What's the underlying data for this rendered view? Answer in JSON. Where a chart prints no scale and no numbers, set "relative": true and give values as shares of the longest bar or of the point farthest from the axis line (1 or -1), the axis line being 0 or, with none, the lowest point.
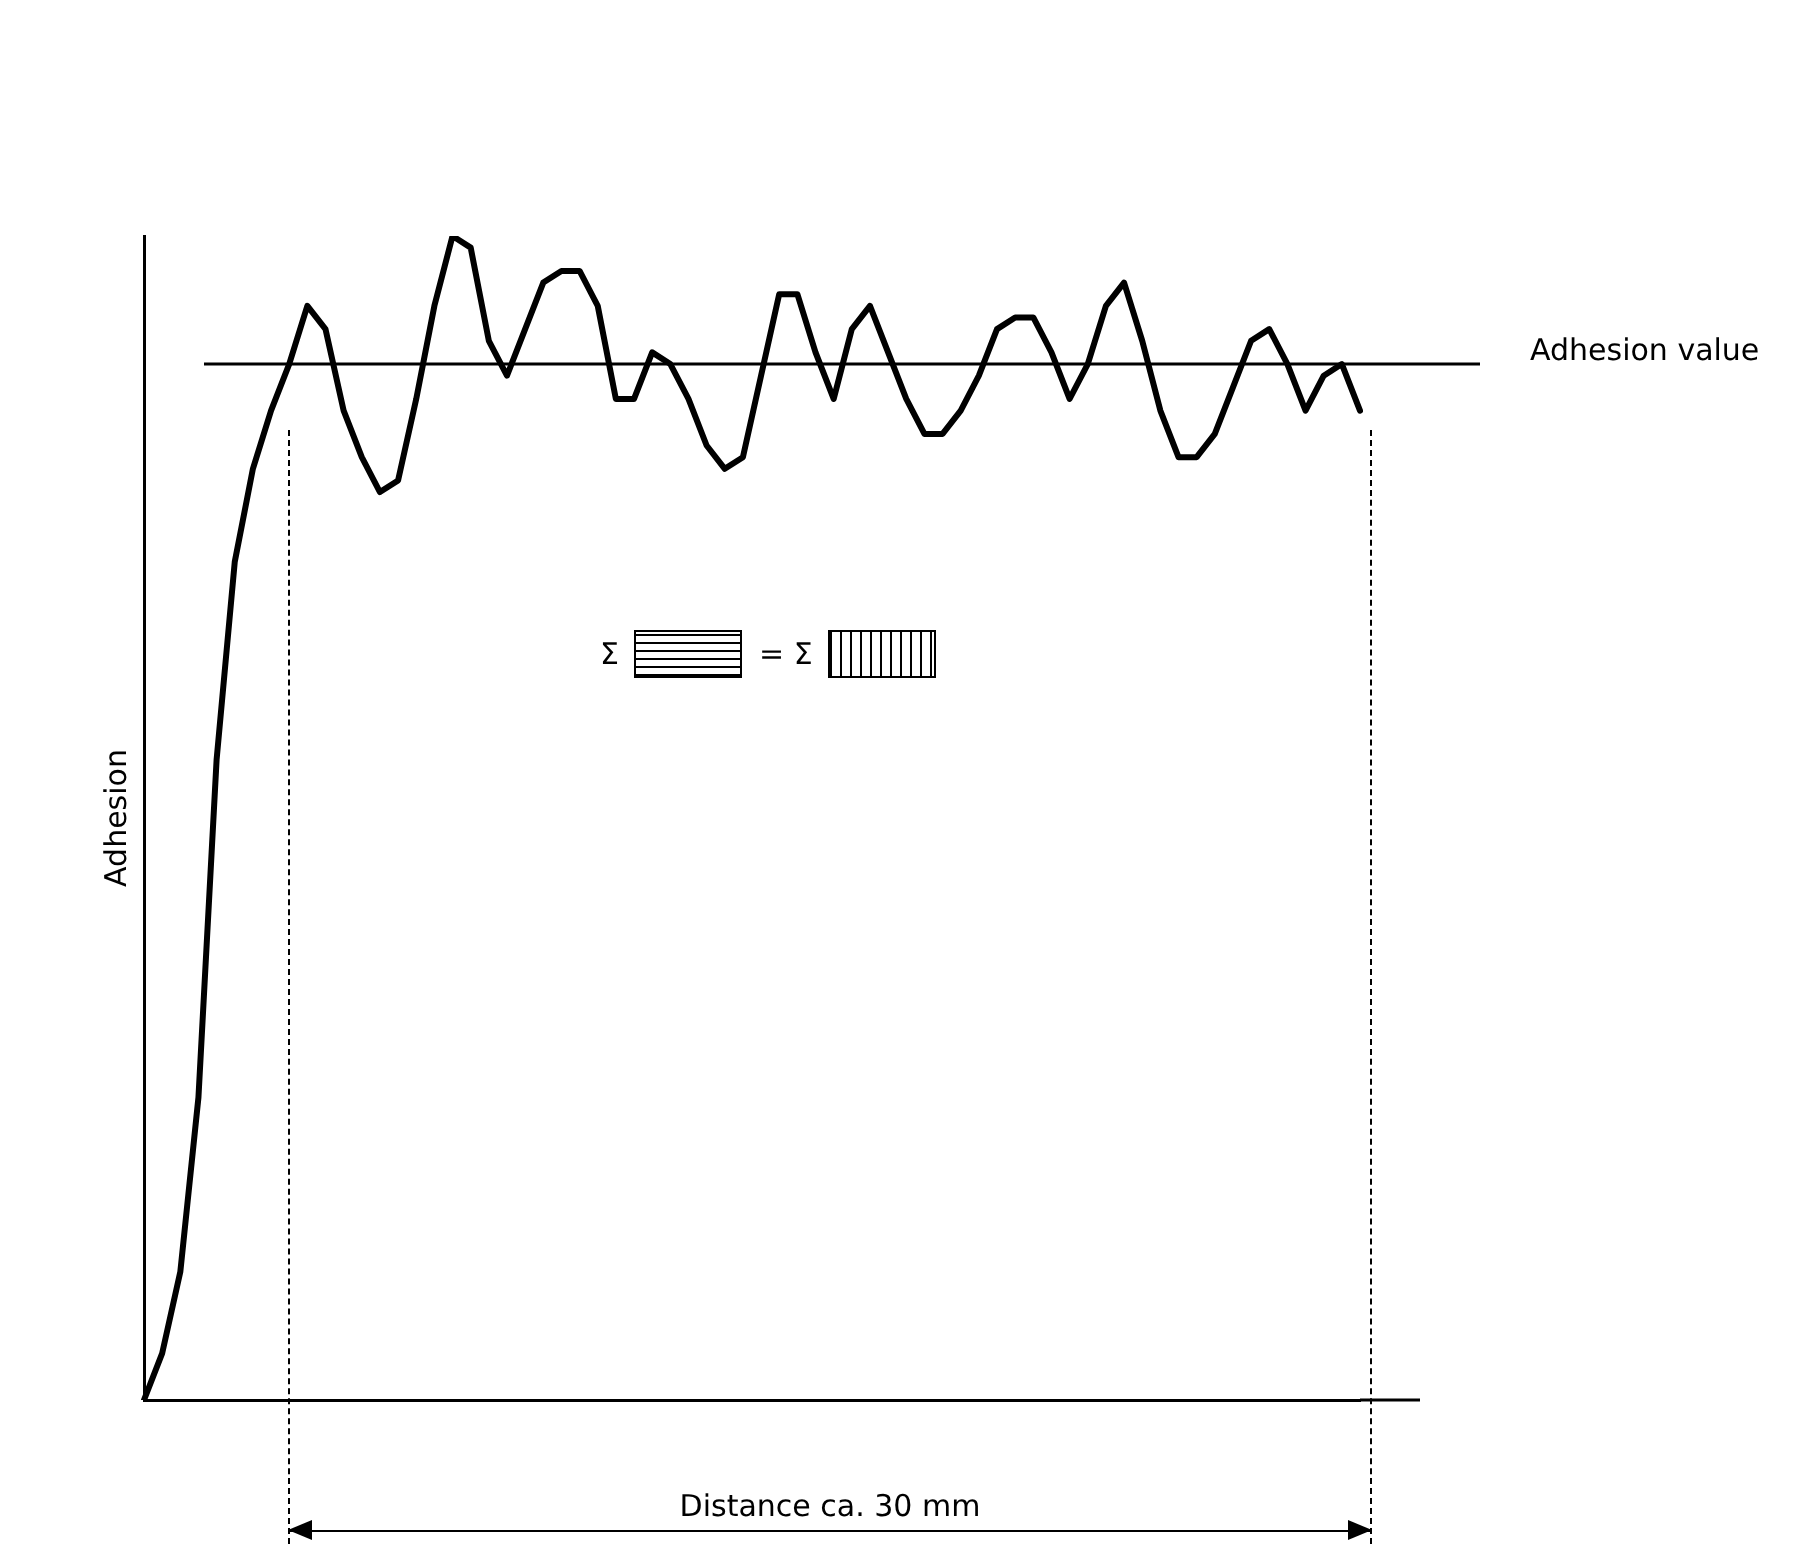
{
  "chart_data": {
    "type": "line",
    "relative": true,
    "ylabel": "Adhesion",
    "tick_labels": false,
    "grid": false,
    "marker": "none",
    "line_style": "solid",
    "categories": [
      null,
      null,
      null,
      null,
      null,
      null,
      null,
      null,
      null,
      null,
      null,
      null,
      null,
      null,
      null,
      null,
      null,
      null,
      null,
      null,
      null,
      null,
      null,
      null,
      null,
      null,
      null,
      null,
      null,
      null,
      null,
      null,
      null,
      null,
      null,
      null,
      null,
      null,
      null,
      null,
      null,
      null,
      null,
      null,
      null,
      null,
      null,
      null,
      null,
      null,
      null,
      null,
      null,
      null,
      null,
      null,
      null,
      null,
      null,
      null,
      null,
      null,
      null,
      null,
      null,
      null,
      null,
      null
    ],
    "series": [
      {
        "color": "#000000",
        "values": [
          0,
          0.04,
          0.11,
          0.26,
          0.55,
          0.72,
          0.8,
          0.85,
          0.89,
          0.94,
          0.92,
          0.85,
          0.81,
          0.78,
          0.79,
          0.86,
          0.94,
          1,
          0.99,
          0.91,
          0.88,
          0.92,
          0.96,
          0.97,
          0.97,
          0.94,
          0.86,
          0.86,
          0.9,
          0.89,
          0.86,
          0.82,
          0.8,
          0.81,
          0.88,
          0.95,
          0.95,
          0.9,
          0.86,
          0.92,
          0.94,
          0.9,
          0.86,
          0.83,
          0.83,
          0.85,
          0.88,
          0.92,
          0.93,
          0.93,
          0.9,
          0.86,
          0.89,
          0.94,
          0.96,
          0.91,
          0.85,
          0.81,
          0.81,
          0.83,
          0.87,
          0.91,
          0.92,
          0.89,
          0.85,
          0.88,
          0.89,
          0.85
        ]
      }
    ],
    "ref_lines": [
      {
        "axis": "y",
        "value": 0.89,
        "label": "Adhesion value"
      }
    ],
    "annotations": [
      "Σ",
      "= Σ",
      "Distance ca. 30 mm"
    ]
  }
}
